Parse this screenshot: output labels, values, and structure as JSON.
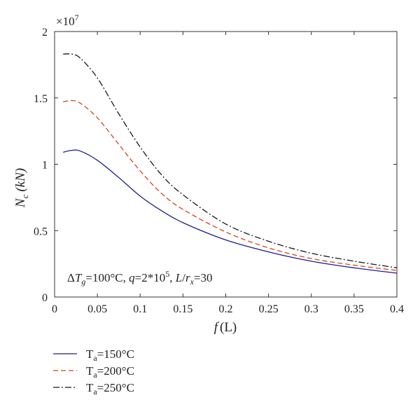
{
  "chart_data": {
    "type": "line",
    "xlabel_italic": "f",
    "xlabel_rest": "(L)",
    "ylabel_main": "N",
    "ylabel_sub": "c",
    "ylabel_unit": "(kN)",
    "y_multiplier": "×10",
    "y_multiplier_exp": "7",
    "xlim": [
      0,
      0.4
    ],
    "ylim": [
      0,
      2
    ],
    "x_ticks": [
      0,
      0.05,
      0.1,
      0.15,
      0.2,
      0.25,
      0.3,
      0.35,
      0.4
    ],
    "x_tick_labels": [
      "0",
      "0.05",
      "0.1",
      "0.15",
      "0.2",
      "0.25",
      "0.3",
      "0.35",
      "0.4"
    ],
    "y_ticks": [
      0,
      0.5,
      1,
      1.5,
      2
    ],
    "y_tick_labels": [
      "0",
      "0.5",
      "1",
      "1.5",
      "2"
    ],
    "annotation": {
      "delta": "Δ",
      "T": "T",
      "T_sub": "g",
      "eq1": "=100°C, ",
      "q": "q",
      "eq2": "=2*10",
      "q_exp": "5",
      "sep": ", ",
      "L": "L",
      "slash": "/",
      "r": "r",
      "r_sub": "x",
      "eq3": "=30"
    },
    "series": [
      {
        "name": "Tₐ=150°C",
        "legend_main": "T",
        "legend_sub": "a",
        "legend_rest": "=150°C",
        "color": "#1f1f8c",
        "dash": "solid",
        "x": [
          0.01,
          0.02,
          0.03,
          0.05,
          0.075,
          0.1,
          0.125,
          0.15,
          0.2,
          0.25,
          0.3,
          0.35,
          0.4
        ],
        "y": [
          1.09,
          1.105,
          1.1,
          1.03,
          0.9,
          0.76,
          0.65,
          0.56,
          0.43,
          0.34,
          0.27,
          0.22,
          0.18
        ]
      },
      {
        "name": "Tₐ=200°C",
        "legend_main": "T",
        "legend_sub": "a",
        "legend_rest": "=200°C",
        "color": "#d2461e",
        "dash": "dashed",
        "x": [
          0.01,
          0.02,
          0.03,
          0.05,
          0.075,
          0.1,
          0.125,
          0.15,
          0.2,
          0.25,
          0.3,
          0.35,
          0.4
        ],
        "y": [
          1.47,
          1.48,
          1.46,
          1.35,
          1.15,
          0.95,
          0.78,
          0.66,
          0.49,
          0.37,
          0.29,
          0.24,
          0.2
        ]
      },
      {
        "name": "Tₐ=250°C",
        "legend_main": "T",
        "legend_sub": "a",
        "legend_rest": "=250°C",
        "color": "#1a1a1a",
        "dash": "dashdot",
        "x": [
          0.01,
          0.02,
          0.03,
          0.05,
          0.075,
          0.1,
          0.125,
          0.15,
          0.2,
          0.25,
          0.3,
          0.35,
          0.4
        ],
        "y": [
          1.83,
          1.83,
          1.8,
          1.65,
          1.38,
          1.13,
          0.92,
          0.77,
          0.55,
          0.42,
          0.33,
          0.27,
          0.22
        ]
      }
    ]
  }
}
